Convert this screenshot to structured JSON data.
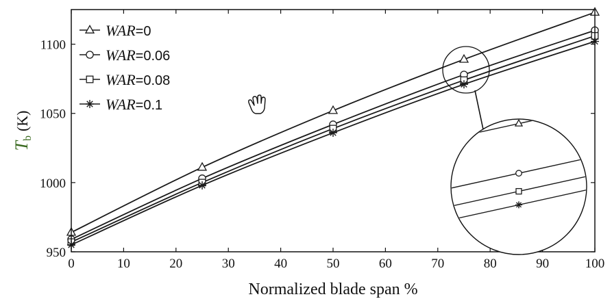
{
  "chart_data": {
    "type": "line",
    "x": [
      0,
      25,
      50,
      75,
      100
    ],
    "xlim": [
      0,
      100
    ],
    "ylim": [
      950,
      1125
    ],
    "xticks": [
      0,
      10,
      20,
      30,
      40,
      50,
      60,
      70,
      80,
      90,
      100
    ],
    "yticks": [
      950,
      1000,
      1050,
      1100
    ],
    "xlabel": "Normalized blade span %",
    "ylabel_main": "T",
    "ylabel_sub": "b",
    "ylabel_unit": "(K)",
    "legend_prefix": "WAR",
    "legend_position": "top-left",
    "grid": false,
    "series": [
      {
        "name": "WAR=0",
        "value_text": "=0",
        "marker": "triangle",
        "values": [
          964,
          1011,
          1052,
          1089,
          1123
        ]
      },
      {
        "name": "WAR=0.06",
        "value_text": "=0.06",
        "marker": "circle",
        "values": [
          959,
          1003,
          1042,
          1078,
          1110
        ]
      },
      {
        "name": "WAR=0.08",
        "value_text": "=0.08",
        "marker": "square",
        "values": [
          957,
          1000,
          1039,
          1074,
          1106
        ]
      },
      {
        "name": "WAR=0.1",
        "value_text": "=0.1",
        "marker": "star",
        "values": [
          955,
          998,
          1036,
          1071,
          1102
        ]
      }
    ],
    "inset_zoom_x": 75,
    "line_color": "#1a1a1a",
    "ylabel_color": "#3a6a20"
  }
}
